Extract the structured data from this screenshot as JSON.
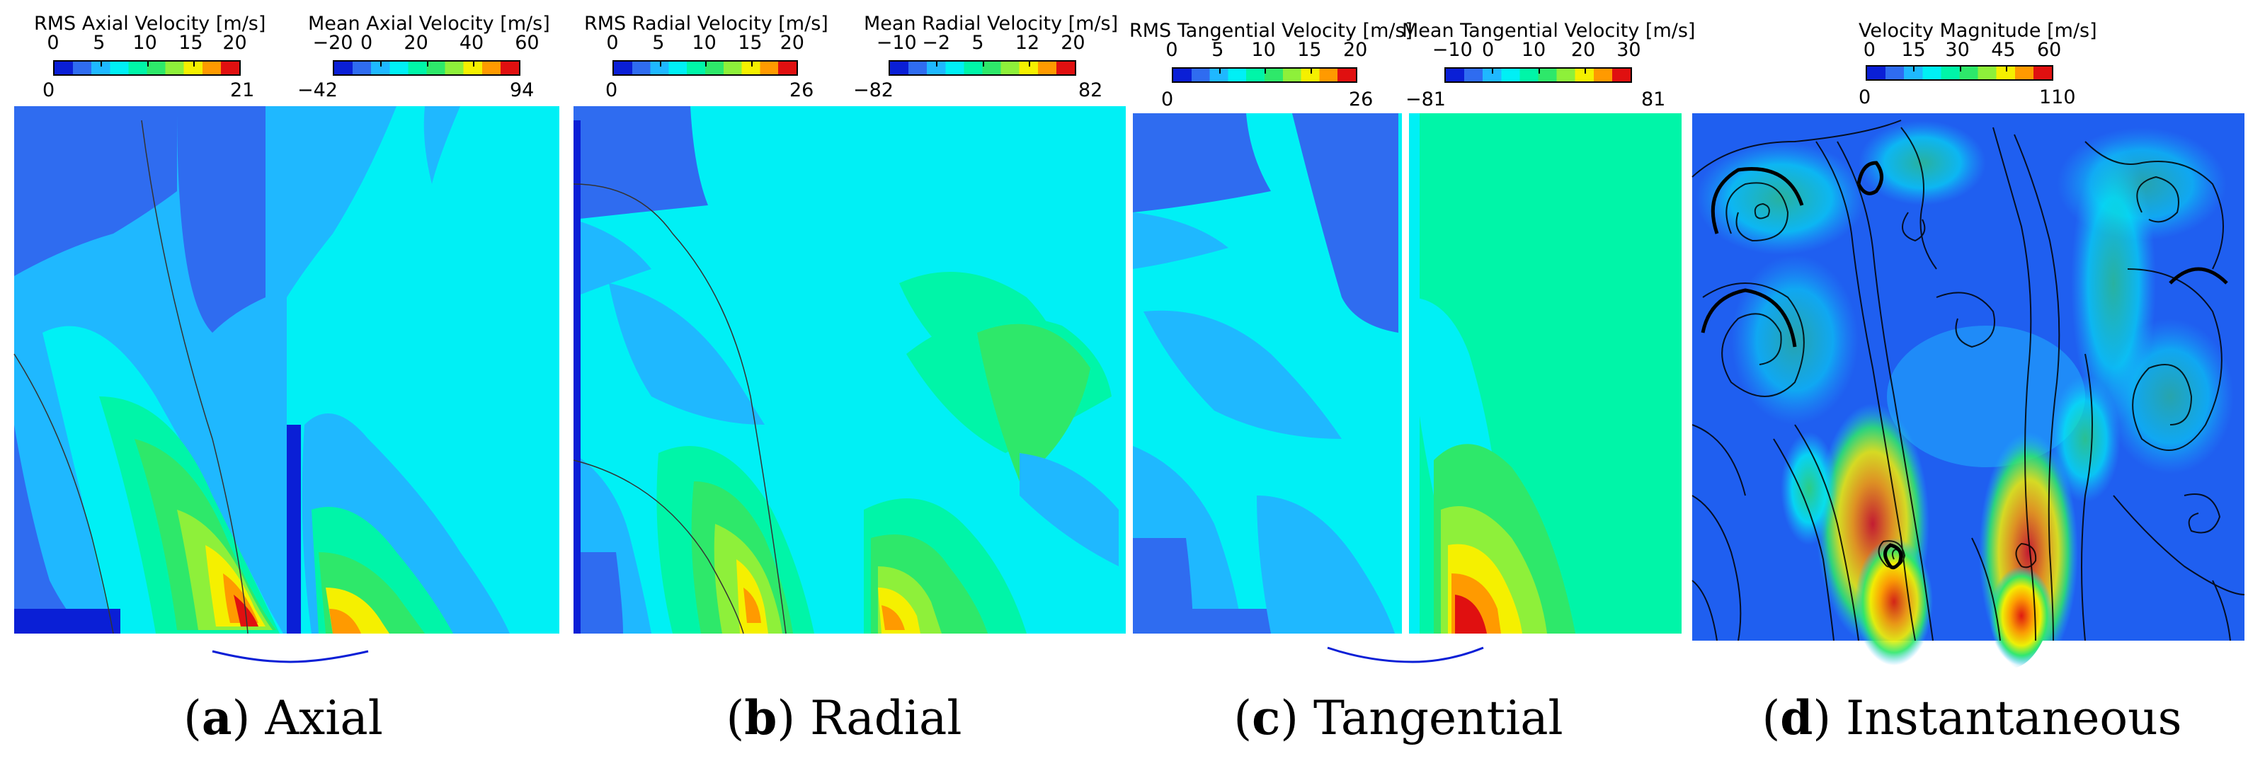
{
  "panels": [
    {
      "letter": "a",
      "name": "Axial",
      "colorbars": [
        {
          "title": "RMS Axial Velocity [m/s]",
          "ticks": [
            "0",
            "5",
            "10",
            "15",
            "20"
          ],
          "min": "0",
          "max": "21"
        },
        {
          "title": "Mean Axial Velocity  [m/s]",
          "ticks": [
            "−20",
            "0",
            "20",
            "40",
            "60"
          ],
          "min": "−42",
          "max": "94"
        }
      ]
    },
    {
      "letter": "b",
      "name": "Radial",
      "colorbars": [
        {
          "title": "RMS Radial Velocity  [m/s]",
          "ticks": [
            "0",
            "5",
            "10",
            "15",
            "20"
          ],
          "min": "0",
          "max": "26"
        },
        {
          "title": "Mean Radial Velocity  [m/s]",
          "ticks": [
            "−10",
            "−2",
            "5",
            "12",
            "20"
          ],
          "min": "−82",
          "max": "82"
        }
      ]
    },
    {
      "letter": "c",
      "name": "Tangential",
      "colorbars": [
        {
          "title": "RMS Tangential Velocity [m/s]",
          "ticks": [
            "0",
            "5",
            "10",
            "15",
            "20"
          ],
          "min": "0",
          "max": "26"
        },
        {
          "title": "Mean Tangential Velocity  [m/s]",
          "ticks": [
            "−10",
            "0",
            "10",
            "20",
            "30"
          ],
          "min": "−81",
          "max": "81"
        }
      ]
    },
    {
      "letter": "d",
      "name": "Instantaneous",
      "colorbars": [
        {
          "title": "Velocity Magnitude [m/s]",
          "ticks": [
            "0",
            "15",
            "30",
            "45",
            "60"
          ],
          "min": "0",
          "max": "110"
        }
      ]
    }
  ],
  "colors": {
    "dark_blue": "#0a1fd6",
    "blue": "#2f6cf0",
    "light_blue": "#1fb8ff",
    "cyan": "#00f0f5",
    "aqua_green": "#00f5a8",
    "green": "#2ee86a",
    "light_green": "#8ef03a",
    "yellow": "#f5f000",
    "orange": "#ff9a00",
    "red": "#e01010",
    "streamline": "#000000"
  },
  "chart_data": [
    {
      "type": "heatmap",
      "title": "RMS Axial Velocity [m/s]",
      "colorbar_range": [
        0,
        21
      ],
      "colorbar_ticks": [
        0,
        5,
        10,
        15,
        20
      ],
      "peak_value": 21,
      "peak_location": "near nozzle, bottom centre"
    },
    {
      "type": "heatmap",
      "title": "Mean Axial Velocity  [m/s]",
      "colorbar_range": [
        -42,
        94
      ],
      "colorbar_ticks": [
        -20,
        0,
        20,
        40,
        60
      ]
    },
    {
      "type": "heatmap",
      "title": "RMS Radial Velocity  [m/s]",
      "colorbar_range": [
        0,
        26
      ],
      "colorbar_ticks": [
        0,
        5,
        10,
        15,
        20
      ]
    },
    {
      "type": "heatmap",
      "title": "Mean Radial Velocity  [m/s]",
      "colorbar_range": [
        -82,
        82
      ],
      "colorbar_ticks": [
        -10,
        -2,
        5,
        12,
        20
      ]
    },
    {
      "type": "heatmap",
      "title": "RMS Tangential Velocity [m/s]",
      "colorbar_range": [
        0,
        26
      ],
      "colorbar_ticks": [
        0,
        5,
        10,
        15,
        20
      ]
    },
    {
      "type": "heatmap",
      "title": "Mean Tangential Velocity  [m/s]",
      "colorbar_range": [
        -81,
        81
      ],
      "colorbar_ticks": [
        -10,
        0,
        10,
        20,
        30
      ]
    },
    {
      "type": "heatmap",
      "title": "Velocity Magnitude [m/s]",
      "colorbar_range": [
        0,
        110
      ],
      "colorbar_ticks": [
        0,
        15,
        30,
        45,
        60
      ],
      "overlay": "streamlines"
    }
  ]
}
